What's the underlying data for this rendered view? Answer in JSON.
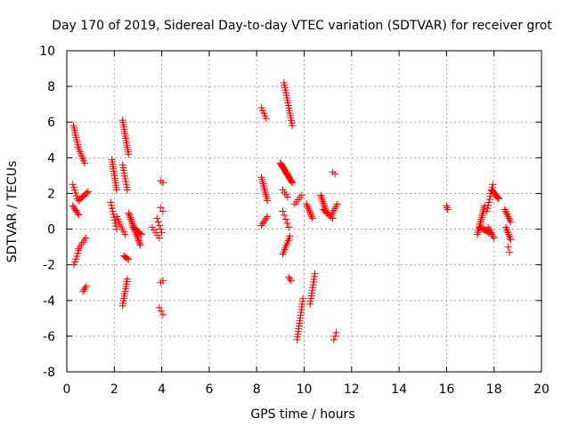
{
  "chart_data": {
    "type": "scatter",
    "title": "Day 170 of 2019, Sidereal Day-to-day VTEC variation (SDTVAR) for receiver grot",
    "xlabel": "GPS time / hours",
    "ylabel": "SDTVAR / TECUs",
    "xlim": [
      0,
      20
    ],
    "ylim": [
      -8,
      10
    ],
    "x_ticks": [
      0,
      2,
      4,
      6,
      8,
      10,
      12,
      14,
      16,
      18,
      20
    ],
    "y_ticks": [
      -8,
      -6,
      -4,
      -2,
      0,
      2,
      4,
      6,
      8,
      10
    ],
    "x_tick_labels": [
      "0",
      "2",
      "4",
      "6",
      "8",
      "10",
      "12",
      "14",
      "16",
      "18",
      "20"
    ],
    "y_tick_labels": [
      "-8",
      "-6",
      "-4",
      "-2",
      "0",
      "2",
      "4",
      "6",
      "8",
      "10"
    ],
    "grid": true,
    "marker": "+",
    "color": "#ff0000",
    "segments": [
      {
        "x0": 0.28,
        "x1": 0.48,
        "y0": 5.8,
        "y1": 4.6,
        "n": 10
      },
      {
        "x0": 0.48,
        "x1": 0.75,
        "y0": 4.6,
        "y1": 3.7,
        "n": 8
      },
      {
        "x0": 0.25,
        "x1": 0.45,
        "y0": 2.5,
        "y1": 1.7,
        "n": 6
      },
      {
        "x0": 0.25,
        "x1": 0.5,
        "y0": 1.3,
        "y1": 0.8,
        "n": 7
      },
      {
        "x0": 0.5,
        "x1": 0.9,
        "y0": 1.6,
        "y1": 2.1,
        "n": 9
      },
      {
        "x0": 0.3,
        "x1": 0.5,
        "y0": -2.0,
        "y1": -1.2,
        "n": 6
      },
      {
        "x0": 0.5,
        "x1": 0.8,
        "y0": -1.1,
        "y1": -0.5,
        "n": 6
      },
      {
        "x0": 0.68,
        "x1": 0.82,
        "y0": -3.5,
        "y1": -3.2,
        "n": 4
      },
      {
        "x0": 1.9,
        "x1": 2.1,
        "y0": 3.9,
        "y1": 2.2,
        "n": 14
      },
      {
        "x0": 1.85,
        "x1": 2.1,
        "y0": 1.5,
        "y1": 0.0,
        "n": 10
      },
      {
        "x0": 2.1,
        "x1": 2.45,
        "y0": 0.7,
        "y1": -0.3,
        "n": 8
      },
      {
        "x0": 2.35,
        "x1": 2.6,
        "y0": 6.1,
        "y1": 4.2,
        "n": 16
      },
      {
        "x0": 2.35,
        "x1": 2.55,
        "y0": 3.6,
        "y1": 2.2,
        "n": 10
      },
      {
        "x0": 2.4,
        "x1": 2.6,
        "y0": -1.5,
        "y1": -1.7,
        "n": 5
      },
      {
        "x0": 2.35,
        "x1": 2.55,
        "y0": -4.3,
        "y1": -2.8,
        "n": 12
      },
      {
        "x0": 2.6,
        "x1": 3.1,
        "y0": 0.9,
        "y1": -0.9,
        "n": 22
      },
      {
        "x0": 2.8,
        "x1": 3.15,
        "y0": 0.1,
        "y1": -0.3,
        "n": 8
      },
      {
        "x0": 3.6,
        "x1": 3.9,
        "y0": 0.1,
        "y1": -0.5,
        "n": 5
      },
      {
        "x0": 3.8,
        "x1": 4.0,
        "y0": 0.6,
        "y1": -0.2,
        "n": 5
      },
      {
        "x0": 3.95,
        "x1": 4.05,
        "y0": 1.2,
        "y1": 1.0,
        "n": 2
      },
      {
        "x0": 3.95,
        "x1": 4.05,
        "y0": 2.7,
        "y1": 2.6,
        "n": 2
      },
      {
        "x0": 3.9,
        "x1": 4.05,
        "y0": -4.4,
        "y1": -4.8,
        "n": 3
      },
      {
        "x0": 3.95,
        "x1": 4.05,
        "y0": -3.0,
        "y1": -2.9,
        "n": 2
      },
      {
        "x0": 8.2,
        "x1": 8.4,
        "y0": 6.8,
        "y1": 6.2,
        "n": 5
      },
      {
        "x0": 8.2,
        "x1": 8.45,
        "y0": 2.9,
        "y1": 1.6,
        "n": 12
      },
      {
        "x0": 8.2,
        "x1": 8.45,
        "y0": 0.2,
        "y1": 0.7,
        "n": 6
      },
      {
        "x0": 9.15,
        "x1": 9.5,
        "y0": 8.2,
        "y1": 5.8,
        "n": 18
      },
      {
        "x0": 9.0,
        "x1": 9.5,
        "y0": 3.7,
        "y1": 2.6,
        "n": 22
      },
      {
        "x0": 9.1,
        "x1": 9.3,
        "y0": 2.2,
        "y1": 1.8,
        "n": 4
      },
      {
        "x0": 9.1,
        "x1": 9.35,
        "y0": 1.0,
        "y1": 0.1,
        "n": 5
      },
      {
        "x0": 9.1,
        "x1": 9.4,
        "y0": -1.4,
        "y1": -0.4,
        "n": 9
      },
      {
        "x0": 9.35,
        "x1": 9.45,
        "y0": -2.7,
        "y1": -2.9,
        "n": 3
      },
      {
        "x0": 9.7,
        "x1": 9.95,
        "y0": -6.2,
        "y1": -3.9,
        "n": 16
      },
      {
        "x0": 9.6,
        "x1": 9.9,
        "y0": 1.4,
        "y1": 1.9,
        "n": 5
      },
      {
        "x0": 10.1,
        "x1": 10.35,
        "y0": 1.4,
        "y1": 0.6,
        "n": 10
      },
      {
        "x0": 10.25,
        "x1": 10.45,
        "y0": -4.2,
        "y1": -2.5,
        "n": 12
      },
      {
        "x0": 10.7,
        "x1": 10.95,
        "y0": 1.9,
        "y1": 0.9,
        "n": 12
      },
      {
        "x0": 10.8,
        "x1": 11.2,
        "y0": 1.1,
        "y1": 0.6,
        "n": 8
      },
      {
        "x0": 11.15,
        "x1": 11.4,
        "y0": 0.8,
        "y1": 1.4,
        "n": 6
      },
      {
        "x0": 11.2,
        "x1": 11.3,
        "y0": 3.2,
        "y1": 3.1,
        "n": 2
      },
      {
        "x0": 11.25,
        "x1": 11.35,
        "y0": -6.2,
        "y1": -5.8,
        "n": 3
      },
      {
        "x0": 16.0,
        "x1": 16.05,
        "y0": 1.3,
        "y1": 1.1,
        "n": 3
      },
      {
        "x0": 17.3,
        "x1": 17.6,
        "y0": -0.3,
        "y1": 1.3,
        "n": 16
      },
      {
        "x0": 17.4,
        "x1": 17.8,
        "y0": 0.1,
        "y1": -0.2,
        "n": 10
      },
      {
        "x0": 17.7,
        "x1": 17.95,
        "y0": 1.0,
        "y1": 2.5,
        "n": 10
      },
      {
        "x0": 17.9,
        "x1": 18.2,
        "y0": 2.2,
        "y1": 1.7,
        "n": 10
      },
      {
        "x0": 17.75,
        "x1": 18.0,
        "y0": 0.1,
        "y1": -0.5,
        "n": 7
      },
      {
        "x0": 18.45,
        "x1": 18.7,
        "y0": 1.1,
        "y1": 0.4,
        "n": 8
      },
      {
        "x0": 18.5,
        "x1": 18.7,
        "y0": 0.1,
        "y1": -0.6,
        "n": 8
      },
      {
        "x0": 18.6,
        "x1": 18.65,
        "y0": -1.0,
        "y1": -1.3,
        "n": 2
      }
    ]
  }
}
